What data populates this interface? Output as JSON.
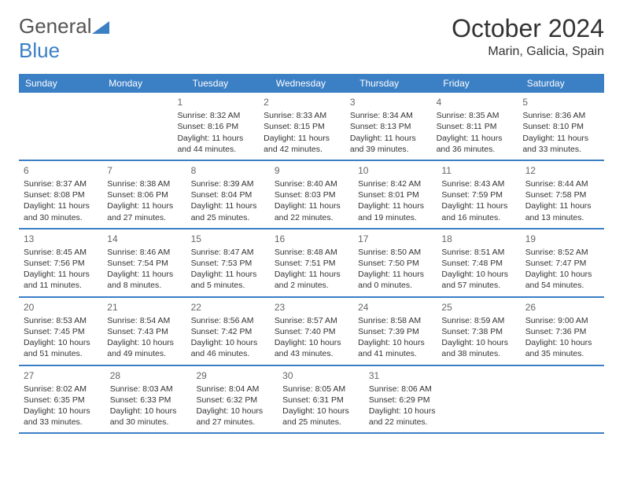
{
  "brand": {
    "part1": "General",
    "part2": "Blue",
    "text_color": "#555555",
    "accent_color": "#3b7fc4"
  },
  "title": "October 2024",
  "location": "Marin, Galicia, Spain",
  "colors": {
    "header_bg": "#3b7fc4",
    "header_text": "#ffffff",
    "divider": "#3b7fc4",
    "page_bg": "#ffffff",
    "body_text": "#333333",
    "daynum_text": "#666666"
  },
  "fonts": {
    "title_size": 32,
    "location_size": 16,
    "dayheader_size": 12,
    "daynum_size": 12,
    "cell_size": 10.5
  },
  "day_headers": [
    "Sunday",
    "Monday",
    "Tuesday",
    "Wednesday",
    "Thursday",
    "Friday",
    "Saturday"
  ],
  "weeks": [
    [
      null,
      null,
      {
        "n": "1",
        "sr": "Sunrise: 8:32 AM",
        "ss": "Sunset: 8:16 PM",
        "dl": "Daylight: 11 hours and 44 minutes."
      },
      {
        "n": "2",
        "sr": "Sunrise: 8:33 AM",
        "ss": "Sunset: 8:15 PM",
        "dl": "Daylight: 11 hours and 42 minutes."
      },
      {
        "n": "3",
        "sr": "Sunrise: 8:34 AM",
        "ss": "Sunset: 8:13 PM",
        "dl": "Daylight: 11 hours and 39 minutes."
      },
      {
        "n": "4",
        "sr": "Sunrise: 8:35 AM",
        "ss": "Sunset: 8:11 PM",
        "dl": "Daylight: 11 hours and 36 minutes."
      },
      {
        "n": "5",
        "sr": "Sunrise: 8:36 AM",
        "ss": "Sunset: 8:10 PM",
        "dl": "Daylight: 11 hours and 33 minutes."
      }
    ],
    [
      {
        "n": "6",
        "sr": "Sunrise: 8:37 AM",
        "ss": "Sunset: 8:08 PM",
        "dl": "Daylight: 11 hours and 30 minutes."
      },
      {
        "n": "7",
        "sr": "Sunrise: 8:38 AM",
        "ss": "Sunset: 8:06 PM",
        "dl": "Daylight: 11 hours and 27 minutes."
      },
      {
        "n": "8",
        "sr": "Sunrise: 8:39 AM",
        "ss": "Sunset: 8:04 PM",
        "dl": "Daylight: 11 hours and 25 minutes."
      },
      {
        "n": "9",
        "sr": "Sunrise: 8:40 AM",
        "ss": "Sunset: 8:03 PM",
        "dl": "Daylight: 11 hours and 22 minutes."
      },
      {
        "n": "10",
        "sr": "Sunrise: 8:42 AM",
        "ss": "Sunset: 8:01 PM",
        "dl": "Daylight: 11 hours and 19 minutes."
      },
      {
        "n": "11",
        "sr": "Sunrise: 8:43 AM",
        "ss": "Sunset: 7:59 PM",
        "dl": "Daylight: 11 hours and 16 minutes."
      },
      {
        "n": "12",
        "sr": "Sunrise: 8:44 AM",
        "ss": "Sunset: 7:58 PM",
        "dl": "Daylight: 11 hours and 13 minutes."
      }
    ],
    [
      {
        "n": "13",
        "sr": "Sunrise: 8:45 AM",
        "ss": "Sunset: 7:56 PM",
        "dl": "Daylight: 11 hours and 11 minutes."
      },
      {
        "n": "14",
        "sr": "Sunrise: 8:46 AM",
        "ss": "Sunset: 7:54 PM",
        "dl": "Daylight: 11 hours and 8 minutes."
      },
      {
        "n": "15",
        "sr": "Sunrise: 8:47 AM",
        "ss": "Sunset: 7:53 PM",
        "dl": "Daylight: 11 hours and 5 minutes."
      },
      {
        "n": "16",
        "sr": "Sunrise: 8:48 AM",
        "ss": "Sunset: 7:51 PM",
        "dl": "Daylight: 11 hours and 2 minutes."
      },
      {
        "n": "17",
        "sr": "Sunrise: 8:50 AM",
        "ss": "Sunset: 7:50 PM",
        "dl": "Daylight: 11 hours and 0 minutes."
      },
      {
        "n": "18",
        "sr": "Sunrise: 8:51 AM",
        "ss": "Sunset: 7:48 PM",
        "dl": "Daylight: 10 hours and 57 minutes."
      },
      {
        "n": "19",
        "sr": "Sunrise: 8:52 AM",
        "ss": "Sunset: 7:47 PM",
        "dl": "Daylight: 10 hours and 54 minutes."
      }
    ],
    [
      {
        "n": "20",
        "sr": "Sunrise: 8:53 AM",
        "ss": "Sunset: 7:45 PM",
        "dl": "Daylight: 10 hours and 51 minutes."
      },
      {
        "n": "21",
        "sr": "Sunrise: 8:54 AM",
        "ss": "Sunset: 7:43 PM",
        "dl": "Daylight: 10 hours and 49 minutes."
      },
      {
        "n": "22",
        "sr": "Sunrise: 8:56 AM",
        "ss": "Sunset: 7:42 PM",
        "dl": "Daylight: 10 hours and 46 minutes."
      },
      {
        "n": "23",
        "sr": "Sunrise: 8:57 AM",
        "ss": "Sunset: 7:40 PM",
        "dl": "Daylight: 10 hours and 43 minutes."
      },
      {
        "n": "24",
        "sr": "Sunrise: 8:58 AM",
        "ss": "Sunset: 7:39 PM",
        "dl": "Daylight: 10 hours and 41 minutes."
      },
      {
        "n": "25",
        "sr": "Sunrise: 8:59 AM",
        "ss": "Sunset: 7:38 PM",
        "dl": "Daylight: 10 hours and 38 minutes."
      },
      {
        "n": "26",
        "sr": "Sunrise: 9:00 AM",
        "ss": "Sunset: 7:36 PM",
        "dl": "Daylight: 10 hours and 35 minutes."
      }
    ],
    [
      {
        "n": "27",
        "sr": "Sunrise: 8:02 AM",
        "ss": "Sunset: 6:35 PM",
        "dl": "Daylight: 10 hours and 33 minutes."
      },
      {
        "n": "28",
        "sr": "Sunrise: 8:03 AM",
        "ss": "Sunset: 6:33 PM",
        "dl": "Daylight: 10 hours and 30 minutes."
      },
      {
        "n": "29",
        "sr": "Sunrise: 8:04 AM",
        "ss": "Sunset: 6:32 PM",
        "dl": "Daylight: 10 hours and 27 minutes."
      },
      {
        "n": "30",
        "sr": "Sunrise: 8:05 AM",
        "ss": "Sunset: 6:31 PM",
        "dl": "Daylight: 10 hours and 25 minutes."
      },
      {
        "n": "31",
        "sr": "Sunrise: 8:06 AM",
        "ss": "Sunset: 6:29 PM",
        "dl": "Daylight: 10 hours and 22 minutes."
      },
      null,
      null
    ]
  ]
}
